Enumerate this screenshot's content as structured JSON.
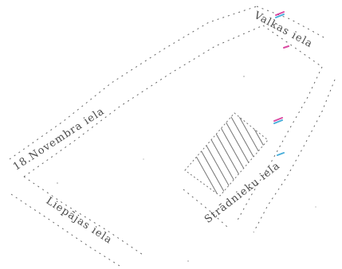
{
  "streets": {
    "novembra": "18.Novembra iela",
    "liepajas": "Liepājas iela",
    "stradnieku": "Strādnieku iela",
    "valkas": "Valkas iela"
  },
  "colors": {
    "line": "#333333",
    "hatch": "#3a3a3a",
    "accent_magenta": "#d21e8c",
    "accent_cyan": "#1e9bd2"
  }
}
